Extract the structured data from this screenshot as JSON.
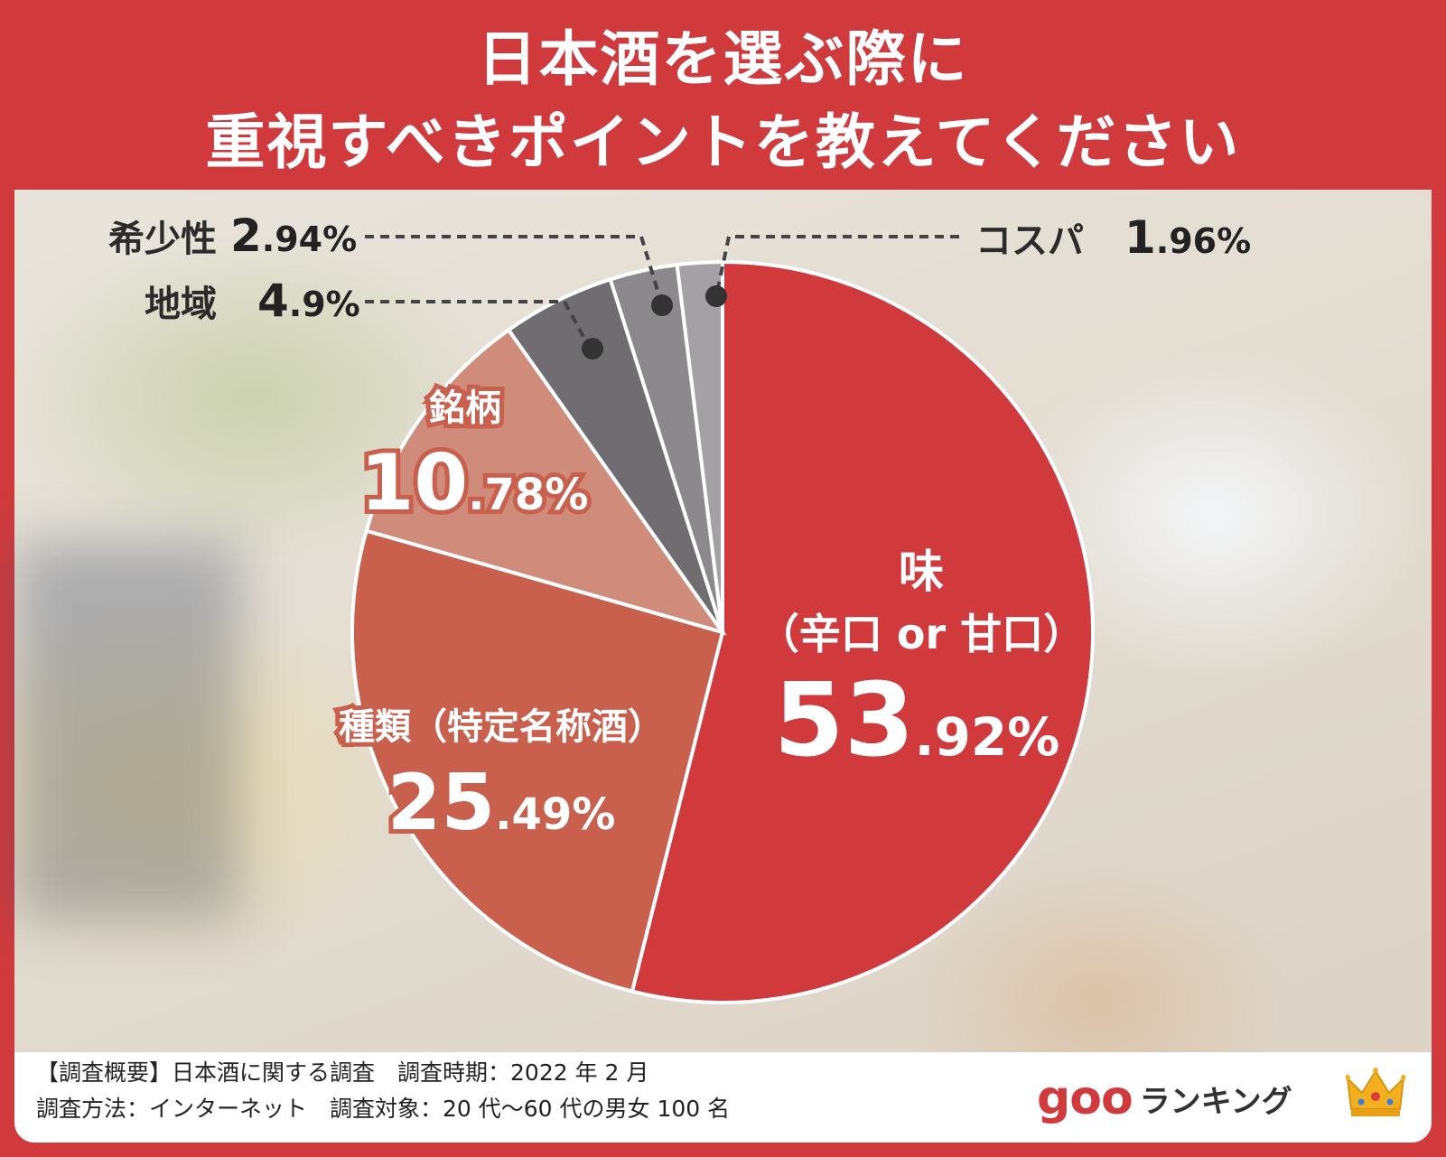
{
  "title": {
    "line1": "日本酒を選ぶ際に",
    "line2": "重視すべきポイントを教えてください"
  },
  "chart_data": {
    "type": "pie",
    "slices": [
      {
        "label": "味",
        "label2": "（辛口 or 甘口）",
        "value": 53.92,
        "int": "53",
        "dec": ".92%",
        "color": "#d03a3d"
      },
      {
        "label": "種類（特定名称酒）",
        "value": 25.49,
        "int": "25",
        "dec": ".49%",
        "color": "#c9604e"
      },
      {
        "label": "銘柄",
        "value": 10.78,
        "int": "10",
        "dec": ".78%",
        "color": "#d08c7b"
      },
      {
        "label": "地域",
        "value": 4.9,
        "int": "4",
        "dec": ".9%",
        "color": "#6f6d70"
      },
      {
        "label": "希少性",
        "value": 2.94,
        "int": "2",
        "dec": ".94%",
        "color": "#8b898c"
      },
      {
        "label": "コスパ",
        "value": 1.96,
        "int": "1",
        "dec": ".96%",
        "color": "#a3a1a4"
      }
    ]
  },
  "footer": {
    "line1": "【調査概要】日本酒に関する調査　調査時期：2022 年 2 月",
    "line2": "調査方法：インターネット　調査対象：20 代～60 代の男女 100 名"
  },
  "logo": {
    "brand": "goo",
    "text": "ランキング"
  }
}
